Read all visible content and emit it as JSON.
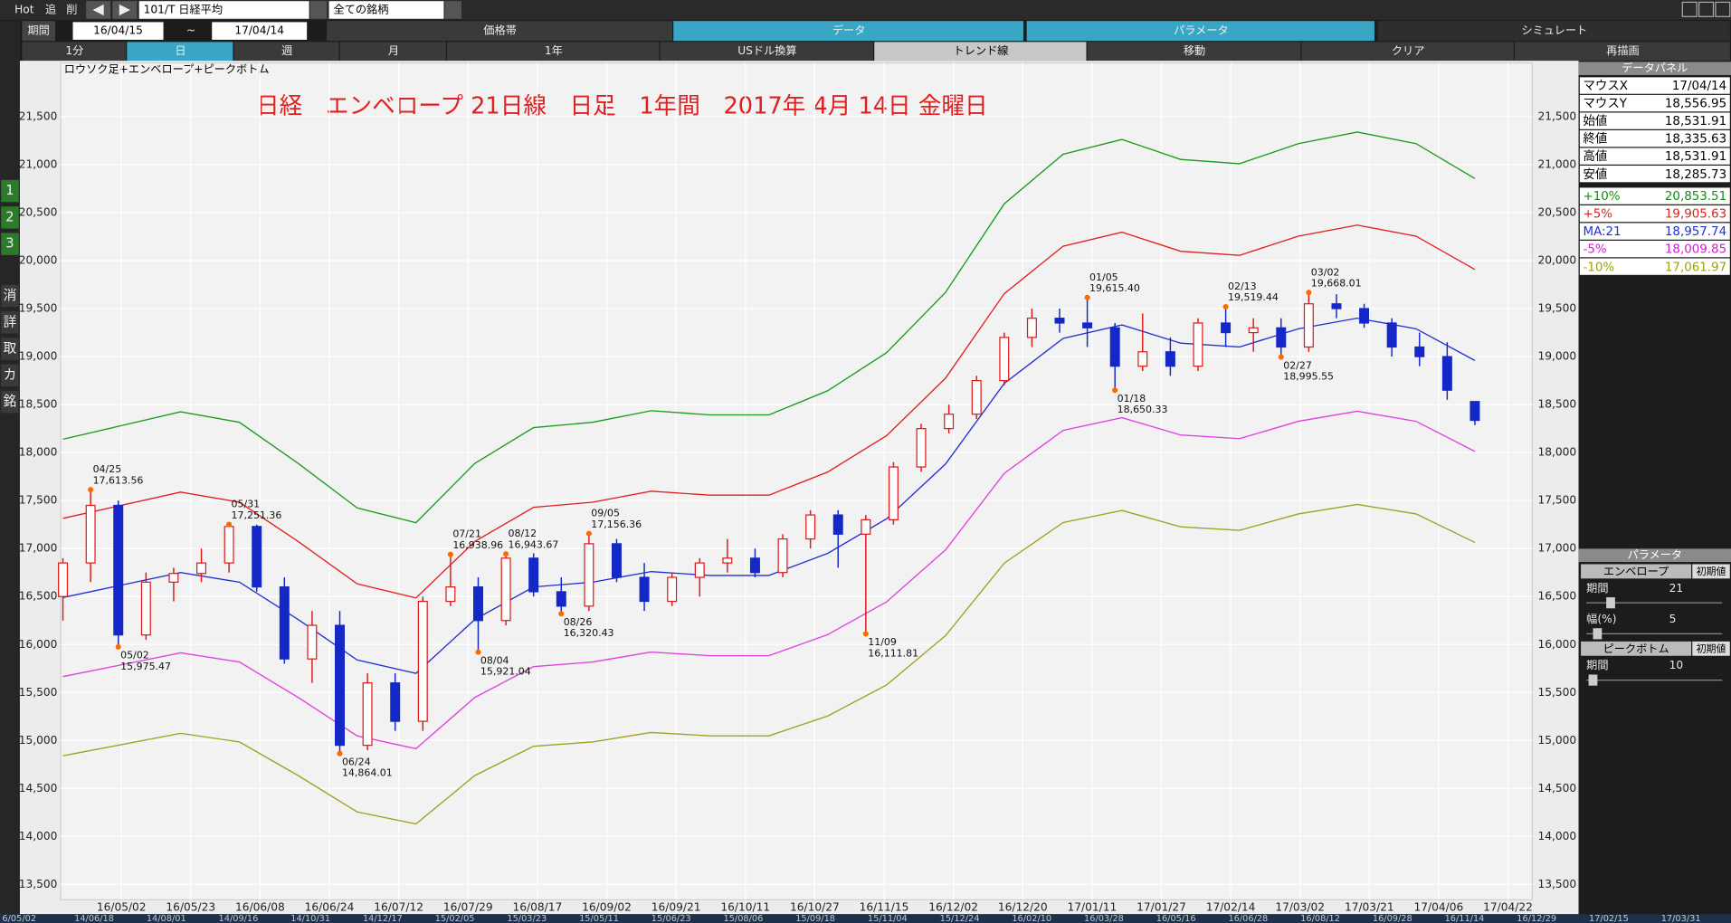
{
  "toolbar": {
    "buttons": [
      "Hot",
      "追",
      "削"
    ],
    "symbol": "101/T 日経平均",
    "universe": "全ての銘柄",
    "period_label": "期間",
    "from": "16/04/15",
    "tilde": "~",
    "to": "17/04/14",
    "tabs": [
      "価格帯",
      "データ",
      "パラメータ",
      "シミュレート"
    ],
    "ranges": [
      "1分",
      "日",
      "週",
      "月",
      "1年",
      "USドル換算",
      "トレンド線",
      "移動",
      "クリア",
      "再描画"
    ]
  },
  "sidebar": [
    "1",
    "2",
    "3",
    "消",
    "詳",
    "取",
    "カ",
    "銘"
  ],
  "chart": {
    "type": "candlestick",
    "subtitle": "ロウソク足+エンベロープ+ピークボトム",
    "title": "日経　エンベロープ 21日線　日足　1年間　2017年 4月 14日 金曜日",
    "ylim": [
      13340,
      22060
    ],
    "yticks": [
      {
        "value": 13500,
        "label": "13,500"
      },
      {
        "value": 14000,
        "label": "14,000"
      },
      {
        "value": 14500,
        "label": "14,500"
      },
      {
        "value": 15000,
        "label": "15,000"
      },
      {
        "value": 15500,
        "label": "15,500"
      },
      {
        "value": 16000,
        "label": "16,000"
      },
      {
        "value": 16500,
        "label": "16,500"
      },
      {
        "value": 17000,
        "label": "17,000"
      },
      {
        "value": 17500,
        "label": "17,500"
      },
      {
        "value": 18000,
        "label": "18,000"
      },
      {
        "value": 18500,
        "label": "18,500"
      },
      {
        "value": 19000,
        "label": "19,000"
      },
      {
        "value": 19500,
        "label": "19,500"
      },
      {
        "value": 20000,
        "label": "20,000"
      },
      {
        "value": 20500,
        "label": "20,500"
      },
      {
        "value": 21000,
        "label": "21,000"
      },
      {
        "value": 21500,
        "label": "21,500"
      }
    ],
    "xticks": [
      "16/05/02",
      "16/05/23",
      "16/06/08",
      "16/06/24",
      "16/07/12",
      "16/07/29",
      "16/08/17",
      "16/09/02",
      "16/09/21",
      "16/10/11",
      "16/10/27",
      "16/11/15",
      "16/12/02",
      "16/12/20",
      "17/01/11",
      "17/01/27",
      "17/02/14",
      "17/03/02",
      "17/03/21",
      "17/04/06",
      "17/04/22"
    ],
    "grid": true,
    "up_color": "#e01818",
    "down_color": "#1428c8",
    "candles": {
      "open": [
        16500,
        16850,
        17450,
        16100,
        16650,
        16740,
        16850,
        17230,
        16600,
        15850,
        16200,
        14950,
        15600,
        15200,
        16450,
        16600,
        16250,
        16900,
        16550,
        16400,
        17050,
        16700,
        16450,
        16700,
        16850,
        16900,
        16750,
        17100,
        17350,
        17150,
        17300,
        17850,
        18250,
        18400,
        18750,
        19200,
        19400,
        19350,
        19300,
        18900,
        19050,
        18900,
        19350,
        19250,
        19300,
        19100,
        19550,
        19500,
        19350,
        19100,
        19000,
        18531.91
      ],
      "high": [
        16900,
        17613.56,
        17500,
        16750,
        16800,
        17000,
        17251.36,
        17250,
        16700,
        16350,
        16350,
        15700,
        15700,
        16500,
        16938.96,
        16700,
        16943.67,
        16950,
        16700,
        17156.36,
        17100,
        16850,
        16750,
        16900,
        17100,
        17000,
        17150,
        17400,
        17400,
        17350,
        17900,
        18300,
        18500,
        18800,
        19250,
        19500,
        19500,
        19615.4,
        19350,
        19450,
        19200,
        19400,
        19519.44,
        19400,
        19400,
        19668.01,
        19650,
        19550,
        19400,
        19250,
        19150,
        18531.91
      ],
      "low": [
        16250,
        16650,
        15975.47,
        16050,
        16450,
        16650,
        16750,
        16550,
        15800,
        15600,
        14864.01,
        14900,
        15100,
        15100,
        16400,
        15921.04,
        16200,
        16500,
        16320.43,
        16350,
        16650,
        16350,
        16400,
        16500,
        16750,
        16700,
        16700,
        17000,
        16800,
        16111.81,
        17250,
        17800,
        18200,
        18350,
        18700,
        19100,
        19250,
        19100,
        18650.33,
        18850,
        18800,
        18850,
        19100,
        19050,
        18995.55,
        19050,
        19400,
        19300,
        19000,
        18900,
        18550,
        18285.73
      ],
      "close": [
        16850,
        17450,
        16100,
        16650,
        16740,
        16850,
        17230,
        16600,
        15850,
        16200,
        14950,
        15600,
        15200,
        16450,
        16600,
        16250,
        16900,
        16550,
        16400,
        17050,
        16700,
        16450,
        16700,
        16850,
        16900,
        16750,
        17100,
        17350,
        17150,
        17300,
        17850,
        18250,
        18400,
        18750,
        19200,
        19400,
        19350,
        19300,
        18900,
        19050,
        18900,
        19350,
        19250,
        19300,
        19100,
        19550,
        19500,
        19350,
        19100,
        19000,
        18650,
        18335.63
      ]
    },
    "envelope": [
      {
        "color": "#1a9a1a",
        "values": [
          18139,
          18282,
          18425,
          18315,
          17886,
          17424,
          17270,
          17886,
          18260,
          18315,
          18436,
          18392,
          18392,
          18645,
          19041,
          19668,
          20592,
          21109,
          21263,
          21054,
          21010,
          21219,
          21340,
          21219,
          20856
        ]
      },
      {
        "color": "#e02020",
        "values": [
          17315,
          17451,
          17588,
          17483,
          17073,
          16632,
          16485,
          17073,
          17430,
          17483,
          17598,
          17556,
          17556,
          17798,
          18176,
          18774,
          19656,
          20150,
          20297,
          20097,
          20055,
          20255,
          20370,
          20255,
          19908
        ]
      },
      {
        "color": "#2030d0",
        "values": [
          16490,
          16620,
          16750,
          16650,
          16260,
          15840,
          15700,
          16260,
          16600,
          16650,
          16760,
          16720,
          16720,
          16950,
          17310,
          17880,
          18720,
          19190,
          19330,
          19140,
          19100,
          19290,
          19400,
          19290,
          18960
        ]
      },
      {
        "color": "#e040e0",
        "values": [
          15666,
          15789,
          15913,
          15818,
          15447,
          15048,
          14915,
          15447,
          15770,
          15818,
          15922,
          15884,
          15884,
          16103,
          16445,
          16986,
          17784,
          18231,
          18364,
          18183,
          18145,
          18326,
          18430,
          18326,
          18012
        ]
      },
      {
        "color": "#a0a020",
        "values": [
          14841,
          14958,
          15075,
          14985,
          14634,
          14256,
          14130,
          14634,
          14940,
          14985,
          15084,
          15048,
          15048,
          15255,
          15579,
          16092,
          16848,
          17271,
          17397,
          17226,
          17190,
          17361,
          17460,
          17361,
          17064
        ]
      }
    ],
    "peak_color": "#ff6a00",
    "peaks": [
      {
        "date": "04/25",
        "value": 17613.56,
        "label": "17,613.56"
      },
      {
        "date": "05/02",
        "value": 15975.47,
        "label": "15,975.47"
      },
      {
        "date": "05/31",
        "value": 17251.36,
        "label": "17,251.36"
      },
      {
        "date": "06/24",
        "value": 14864.01,
        "label": "14,864.01"
      },
      {
        "date": "07/21",
        "value": 16938.96,
        "label": "16,938.96"
      },
      {
        "date": "08/04",
        "value": 15921.04,
        "label": "15,921.04"
      },
      {
        "date": "08/12",
        "value": 16943.67,
        "label": "16,943.67"
      },
      {
        "date": "08/26",
        "value": 16320.43,
        "label": "16,320.43"
      },
      {
        "date": "09/05",
        "value": 17156.36,
        "label": "17,156.36"
      },
      {
        "date": "11/09",
        "value": 16111.81,
        "label": "16,111.81"
      },
      {
        "date": "01/05",
        "value": 19615.4,
        "label": "19,615.40"
      },
      {
        "date": "01/18",
        "value": 18650.33,
        "label": "18,650.33"
      },
      {
        "date": "02/13",
        "value": 19519.44,
        "label": "19,519.44"
      },
      {
        "date": "02/27",
        "value": 18995.55,
        "label": "18,995.55"
      },
      {
        "date": "03/02",
        "value": 19668.01,
        "label": "19,668.01"
      }
    ]
  },
  "panel": {
    "title": "データパネル",
    "rows": [
      {
        "label": "マウスX",
        "value": "17/04/14",
        "color": "#000000"
      },
      {
        "label": "マウスY",
        "value": "18,556.95",
        "color": "#000000"
      },
      {
        "label": "始値",
        "value": "18,531.91",
        "color": "#000000"
      },
      {
        "label": "終値",
        "value": "18,335.63",
        "color": "#000000"
      },
      {
        "label": "高値",
        "value": "18,531.91",
        "color": "#000000"
      },
      {
        "label": "安値",
        "value": "18,285.73",
        "color": "#000000"
      },
      {
        "label": "+10%",
        "value": "20,853.51",
        "color": "#109010"
      },
      {
        "label": "+5%",
        "value": "19,905.63",
        "color": "#e02020"
      },
      {
        "label": "MA:21",
        "value": "18,957.74",
        "color": "#2030d0"
      },
      {
        "label": "-5%",
        "value": "18,009.85",
        "color": "#d020d0"
      },
      {
        "label": "-10%",
        "value": "17,061.97",
        "color": "#a0a010"
      }
    ]
  },
  "params": {
    "title": "パラメータ",
    "envelope": "エンベロープ",
    "envelope_reset": "初期値",
    "period_label": "期間",
    "period": "21",
    "width_label": "幅(%)",
    "width": "5",
    "peak": "ピークボトム",
    "peak_reset": "初期値",
    "peak_period_label": "期間",
    "peak_period": "10"
  },
  "timeline": [
    "6/05/02",
    "14/06/18",
    "14/08/01",
    "14/09/16",
    "14/10/31",
    "14/12/17",
    "15/02/05",
    "15/03/23",
    "15/05/11",
    "15/06/23",
    "15/08/06",
    "15/09/18",
    "15/11/04",
    "15/12/24",
    "16/02/10",
    "16/03/28",
    "16/05/16",
    "16/06/28",
    "16/08/12",
    "16/09/28",
    "16/11/14",
    "16/12/29",
    "17/02/15",
    "17/03/31"
  ]
}
